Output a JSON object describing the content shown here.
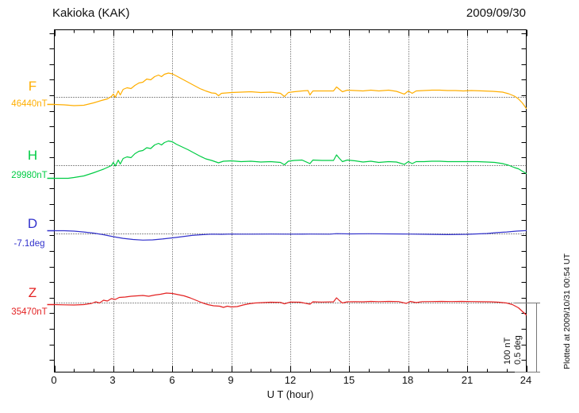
{
  "header": {
    "title": "Kakioka (KAK)",
    "date": "2009/09/30"
  },
  "x_axis": {
    "label": "U T (hour)",
    "tick_labels": [
      "0",
      "3",
      "6",
      "9",
      "12",
      "15",
      "18",
      "21",
      "24"
    ],
    "range_hours": [
      0,
      24
    ],
    "minor_tick_every_hours": 1,
    "major_tick_every_hours": 3
  },
  "scale_bar": {
    "lines": [
      "100 nT",
      "0.5 deg"
    ],
    "nT_per_division": 100,
    "deg_per_division": 0.5
  },
  "footer_note": "Plotted at 2009/10/31 00:54 UT",
  "chart_data": {
    "type": "line",
    "title": "Kakioka (KAK)",
    "date": "2009/09/30",
    "xlabel": "U T (hour)",
    "x_range_hours": [
      0,
      24
    ],
    "x_gridlines_hours": [
      3,
      6,
      9,
      12,
      15,
      18,
      21
    ],
    "grid_style": "dotted",
    "legend_position": "left-margin",
    "series": [
      {
        "name": "F",
        "unit": "nT",
        "baseline_value": 46440,
        "baseline_label": "46440nT",
        "color": "#FFAE00",
        "offsets_from_baseline": [
          [
            0,
            -10.3
          ],
          [
            0.5,
            -10.9
          ],
          [
            1,
            -12.1
          ],
          [
            1.5,
            -11.5
          ],
          [
            2,
            -8
          ],
          [
            2.4,
            -4.6
          ],
          [
            2.7,
            -2.3
          ],
          [
            2.9,
            1.1
          ],
          [
            3,
            4.6
          ],
          [
            3.1,
            0
          ],
          [
            3.25,
            9.2
          ],
          [
            3.35,
            3.4
          ],
          [
            3.5,
            11.5
          ],
          [
            3.7,
            13.8
          ],
          [
            3.9,
            12.6
          ],
          [
            4.1,
            17.2
          ],
          [
            4.3,
            20.7
          ],
          [
            4.5,
            21.8
          ],
          [
            4.7,
            26.4
          ],
          [
            4.9,
            25.3
          ],
          [
            5.1,
            29.9
          ],
          [
            5.3,
            32.2
          ],
          [
            5.45,
            29.9
          ],
          [
            5.6,
            33.3
          ],
          [
            5.8,
            35.1
          ],
          [
            6,
            33.9
          ],
          [
            6.2,
            31
          ],
          [
            6.5,
            26.4
          ],
          [
            6.8,
            21.8
          ],
          [
            7.1,
            17.2
          ],
          [
            7.4,
            12.6
          ],
          [
            7.7,
            9.2
          ],
          [
            8,
            6.3
          ],
          [
            8.2,
            5.7
          ],
          [
            8.35,
            2.3
          ],
          [
            8.5,
            5.7
          ],
          [
            9,
            6.9
          ],
          [
            9.5,
            7.5
          ],
          [
            10,
            8
          ],
          [
            10.5,
            6.9
          ],
          [
            11,
            7.5
          ],
          [
            11.5,
            5.7
          ],
          [
            11.7,
            1.1
          ],
          [
            11.9,
            6.9
          ],
          [
            12.2,
            8
          ],
          [
            12.6,
            9.2
          ],
          [
            12.9,
            9.8
          ],
          [
            13,
            3.4
          ],
          [
            13.15,
            9.2
          ],
          [
            13.6,
            9.2
          ],
          [
            14.2,
            9.2
          ],
          [
            14.35,
            14.9
          ],
          [
            14.5,
            11.5
          ],
          [
            14.65,
            8
          ],
          [
            14.9,
            10.3
          ],
          [
            15.3,
            9.8
          ],
          [
            15.7,
            9.2
          ],
          [
            16.1,
            10.3
          ],
          [
            16.5,
            9.2
          ],
          [
            17,
            10.3
          ],
          [
            17.4,
            8.6
          ],
          [
            17.8,
            4.6
          ],
          [
            18,
            9.2
          ],
          [
            18.2,
            5.7
          ],
          [
            18.4,
            9.2
          ],
          [
            18.8,
            9.8
          ],
          [
            19.2,
            10.3
          ],
          [
            19.6,
            10.3
          ],
          [
            20,
            9.8
          ],
          [
            20.4,
            9.8
          ],
          [
            20.8,
            9.2
          ],
          [
            21.2,
            9.8
          ],
          [
            21.8,
            9.2
          ],
          [
            22.3,
            8.6
          ],
          [
            22.8,
            7.5
          ],
          [
            23.1,
            5.2
          ],
          [
            23.4,
            1.7
          ],
          [
            23.6,
            -2.3
          ],
          [
            23.8,
            -8
          ],
          [
            24,
            -16.1
          ]
        ]
      },
      {
        "name": "H",
        "unit": "nT",
        "baseline_value": 29980,
        "baseline_label": "29980nT",
        "color": "#00CC44",
        "offsets_from_baseline": [
          [
            0,
            -18.4
          ],
          [
            0.7,
            -18.4
          ],
          [
            1,
            -17.2
          ],
          [
            1.5,
            -14.9
          ],
          [
            2,
            -10.3
          ],
          [
            2.5,
            -5.2
          ],
          [
            2.9,
            0
          ],
          [
            3,
            4.6
          ],
          [
            3.1,
            -0.6
          ],
          [
            3.25,
            8
          ],
          [
            3.35,
            2.3
          ],
          [
            3.5,
            10.3
          ],
          [
            3.7,
            12.6
          ],
          [
            3.9,
            11.5
          ],
          [
            4.1,
            17.2
          ],
          [
            4.3,
            20.7
          ],
          [
            4.5,
            21.8
          ],
          [
            4.7,
            25.9
          ],
          [
            4.9,
            24.7
          ],
          [
            5.1,
            29.9
          ],
          [
            5.3,
            32.2
          ],
          [
            5.45,
            29.9
          ],
          [
            5.6,
            33.3
          ],
          [
            5.8,
            35.6
          ],
          [
            6,
            34.5
          ],
          [
            6.2,
            31
          ],
          [
            6.5,
            27
          ],
          [
            6.8,
            23
          ],
          [
            7.1,
            18.4
          ],
          [
            7.4,
            13.8
          ],
          [
            7.7,
            9.8
          ],
          [
            8,
            7.5
          ],
          [
            8.35,
            4
          ],
          [
            8.6,
            6.3
          ],
          [
            9,
            6.9
          ],
          [
            9.5,
            5.7
          ],
          [
            10,
            6.3
          ],
          [
            10.5,
            5.2
          ],
          [
            11,
            5.7
          ],
          [
            11.5,
            4.6
          ],
          [
            11.7,
            1.1
          ],
          [
            11.9,
            6.3
          ],
          [
            12.2,
            7.5
          ],
          [
            12.6,
            8
          ],
          [
            13,
            2.9
          ],
          [
            13.15,
            8
          ],
          [
            13.6,
            7.5
          ],
          [
            14.2,
            7.5
          ],
          [
            14.35,
            15.5
          ],
          [
            14.5,
            10.3
          ],
          [
            14.65,
            5.7
          ],
          [
            14.9,
            8
          ],
          [
            15.3,
            6.9
          ],
          [
            15.7,
            5.2
          ],
          [
            16.1,
            6.3
          ],
          [
            16.5,
            4.6
          ],
          [
            17,
            5.7
          ],
          [
            17.4,
            5.2
          ],
          [
            17.8,
            1.7
          ],
          [
            18,
            5.7
          ],
          [
            18.2,
            2.9
          ],
          [
            18.4,
            5.7
          ],
          [
            18.8,
            5.7
          ],
          [
            19.2,
            6.3
          ],
          [
            19.6,
            6.3
          ],
          [
            20,
            5.7
          ],
          [
            20.5,
            5.7
          ],
          [
            21,
            5.7
          ],
          [
            21.5,
            5.7
          ],
          [
            22,
            5.2
          ],
          [
            22.4,
            4.6
          ],
          [
            22.8,
            2.9
          ],
          [
            23.1,
            0.6
          ],
          [
            23.4,
            -2.9
          ],
          [
            23.6,
            -4.6
          ],
          [
            23.8,
            -8
          ],
          [
            24,
            -11.5
          ]
        ]
      },
      {
        "name": "D",
        "unit": "deg",
        "baseline_value": -7.1,
        "baseline_label": "-7.1deg",
        "color": "#3232CC",
        "offsets_from_baseline": [
          [
            0,
            0.023
          ],
          [
            0.5,
            0.023
          ],
          [
            1,
            0.02
          ],
          [
            1.5,
            0.014
          ],
          [
            2,
            0.006
          ],
          [
            2.5,
            -0.006
          ],
          [
            3,
            -0.02
          ],
          [
            3.5,
            -0.032
          ],
          [
            4,
            -0.04
          ],
          [
            4.5,
            -0.045
          ],
          [
            5,
            -0.043
          ],
          [
            5.5,
            -0.037
          ],
          [
            6,
            -0.029
          ],
          [
            6.5,
            -0.02
          ],
          [
            7,
            -0.011
          ],
          [
            7.5,
            -0.006
          ],
          [
            8,
            -0.002
          ],
          [
            8.5,
            -0.003
          ],
          [
            9,
            -0.001
          ],
          [
            9.5,
            -0.002
          ],
          [
            10,
            -0.002
          ],
          [
            11,
            -0.001
          ],
          [
            12,
            -0.002
          ],
          [
            13,
            -0.001
          ],
          [
            14,
            -0.002
          ],
          [
            14.35,
            0.002
          ],
          [
            15,
            0
          ],
          [
            16,
            0.001
          ],
          [
            17,
            0
          ],
          [
            18,
            -0.001
          ],
          [
            19,
            -0.003
          ],
          [
            20,
            -0.005
          ],
          [
            21,
            -0.003
          ],
          [
            21.5,
            0
          ],
          [
            22,
            0.003
          ],
          [
            22.5,
            0.009
          ],
          [
            23,
            0.014
          ],
          [
            23.5,
            0.02
          ],
          [
            24,
            0.024
          ]
        ]
      },
      {
        "name": "Z",
        "unit": "nT",
        "baseline_value": 35470,
        "baseline_label": "35470nT",
        "color": "#E32222",
        "offsets_from_baseline": [
          [
            0,
            -2.3
          ],
          [
            0.5,
            -2.6
          ],
          [
            1,
            -2.9
          ],
          [
            1.5,
            -2.3
          ],
          [
            1.9,
            -0.6
          ],
          [
            2.1,
            1.7
          ],
          [
            2.3,
            0
          ],
          [
            2.5,
            4
          ],
          [
            2.7,
            2.9
          ],
          [
            2.9,
            6.3
          ],
          [
            3.1,
            5.2
          ],
          [
            3.3,
            8
          ],
          [
            3.6,
            8.6
          ],
          [
            3.9,
            9.8
          ],
          [
            4.2,
            10.3
          ],
          [
            4.5,
            10.9
          ],
          [
            4.8,
            9.8
          ],
          [
            5.1,
            11.5
          ],
          [
            5.4,
            12.6
          ],
          [
            5.7,
            14.4
          ],
          [
            6,
            13.8
          ],
          [
            6.3,
            12.1
          ],
          [
            6.6,
            10.3
          ],
          [
            6.9,
            7.5
          ],
          [
            7.2,
            4
          ],
          [
            7.5,
            0.6
          ],
          [
            7.8,
            -2.3
          ],
          [
            8.1,
            -4
          ],
          [
            8.4,
            -4.6
          ],
          [
            8.6,
            -6.3
          ],
          [
            8.8,
            -4.6
          ],
          [
            9,
            -5.7
          ],
          [
            9.3,
            -5.2
          ],
          [
            9.6,
            -2.9
          ],
          [
            9.9,
            -1.1
          ],
          [
            10.2,
            0
          ],
          [
            10.6,
            0.6
          ],
          [
            11,
            1.1
          ],
          [
            11.5,
            0.9
          ],
          [
            11.7,
            -1.1
          ],
          [
            12,
            1.4
          ],
          [
            12.5,
            1.1
          ],
          [
            13,
            -1.7
          ],
          [
            13.15,
            1.7
          ],
          [
            13.6,
            1.4
          ],
          [
            14.2,
            1.7
          ],
          [
            14.35,
            7.5
          ],
          [
            14.5,
            3.4
          ],
          [
            14.65,
            0
          ],
          [
            14.9,
            1.7
          ],
          [
            15.3,
            2
          ],
          [
            15.7,
            1.7
          ],
          [
            16.1,
            2.3
          ],
          [
            16.5,
            2
          ],
          [
            17,
            2.3
          ],
          [
            17.5,
            2.1
          ],
          [
            17.9,
            -0.6
          ],
          [
            18.1,
            2.3
          ],
          [
            18.4,
            0.6
          ],
          [
            18.7,
            2
          ],
          [
            19.2,
            2.1
          ],
          [
            19.7,
            2.3
          ],
          [
            20.2,
            2.1
          ],
          [
            20.7,
            2.3
          ],
          [
            21.2,
            2.1
          ],
          [
            21.7,
            1.8
          ],
          [
            22.2,
            1.7
          ],
          [
            22.6,
            1.1
          ],
          [
            23,
            0
          ],
          [
            23.3,
            -2.3
          ],
          [
            23.6,
            -6.9
          ],
          [
            23.8,
            -12.1
          ],
          [
            24,
            -17.2
          ]
        ]
      }
    ]
  }
}
